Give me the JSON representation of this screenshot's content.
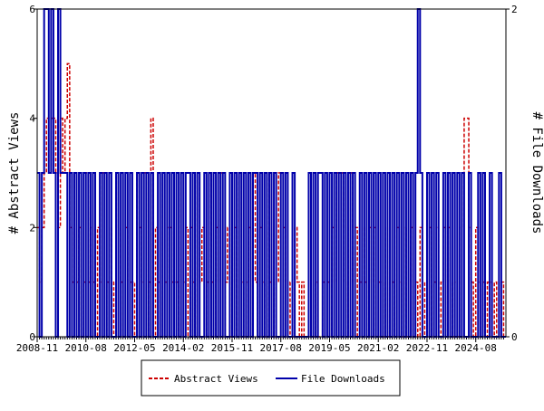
{
  "chart_data": {
    "type": "step",
    "ylabel": "# Abstract Views",
    "y2label": "# File Downloads",
    "ylim": [
      0,
      6
    ],
    "yticks": [
      0,
      2,
      4,
      6
    ],
    "y2lim": [
      0,
      2
    ],
    "y2ticks": [
      0,
      2
    ],
    "categories": [
      "2008-11",
      "2008-12",
      "2009-01",
      "2009-02",
      "2009-03",
      "2009-04",
      "2009-05",
      "2009-06",
      "2009-07",
      "2009-08",
      "2009-09",
      "2009-10",
      "2009-11",
      "2009-12",
      "2010-01",
      "2010-02",
      "2010-03",
      "2010-04",
      "2010-05",
      "2010-06",
      "2010-07",
      "2010-08",
      "2010-09",
      "2010-10",
      "2010-11",
      "2010-12",
      "2011-01",
      "2011-02",
      "2011-03",
      "2011-04",
      "2011-05",
      "2011-06",
      "2011-07",
      "2011-08",
      "2011-09",
      "2011-10",
      "2011-11",
      "2011-12",
      "2012-01",
      "2012-02",
      "2012-03",
      "2012-04",
      "2012-05",
      "2012-06",
      "2012-07",
      "2012-08",
      "2012-09",
      "2012-10",
      "2012-11",
      "2012-12",
      "2013-01",
      "2013-02",
      "2013-03",
      "2013-04",
      "2013-05",
      "2013-06",
      "2013-07",
      "2013-08",
      "2013-09",
      "2013-10",
      "2013-11",
      "2013-12",
      "2014-01",
      "2014-02",
      "2014-03",
      "2014-04",
      "2014-05",
      "2014-06",
      "2014-07",
      "2014-08",
      "2014-09",
      "2014-10",
      "2014-11",
      "2014-12",
      "2015-01",
      "2015-02",
      "2015-03",
      "2015-04",
      "2015-05",
      "2015-06",
      "2015-07",
      "2015-08",
      "2015-09",
      "2015-10",
      "2015-11",
      "2015-12",
      "2016-01",
      "2016-02",
      "2016-03",
      "2016-04",
      "2016-05",
      "2016-06",
      "2016-07",
      "2016-08",
      "2016-09",
      "2016-10",
      "2016-11",
      "2016-12",
      "2017-01",
      "2017-02",
      "2017-03",
      "2017-04",
      "2017-05",
      "2017-06",
      "2017-07",
      "2017-08",
      "2017-09",
      "2017-10",
      "2017-11",
      "2017-12",
      "2018-01",
      "2018-02",
      "2018-03",
      "2018-04",
      "2018-05",
      "2018-06",
      "2018-07",
      "2018-08",
      "2018-09",
      "2018-10",
      "2018-11",
      "2018-12",
      "2019-01",
      "2019-02",
      "2019-03",
      "2019-04",
      "2019-05",
      "2019-06",
      "2019-07",
      "2019-08",
      "2019-09",
      "2019-10",
      "2019-11",
      "2019-12",
      "2020-01",
      "2020-02",
      "2020-03",
      "2020-04",
      "2020-05",
      "2020-06",
      "2020-07",
      "2020-08",
      "2020-09",
      "2020-10",
      "2020-11",
      "2020-12",
      "2021-01",
      "2021-02",
      "2021-03",
      "2021-04",
      "2021-05",
      "2021-06",
      "2021-07",
      "2021-08",
      "2021-09",
      "2021-10",
      "2021-11",
      "2021-12",
      "2022-01",
      "2022-02",
      "2022-03",
      "2022-04",
      "2022-05",
      "2022-06",
      "2022-07",
      "2022-08",
      "2022-09",
      "2022-10",
      "2022-11",
      "2022-12",
      "2023-01",
      "2023-02",
      "2023-03",
      "2023-04",
      "2023-05",
      "2023-06",
      "2023-07",
      "2023-08",
      "2023-09",
      "2023-10",
      "2023-11",
      "2023-12",
      "2024-01",
      "2024-02",
      "2024-03",
      "2024-04",
      "2024-05",
      "2024-06",
      "2024-07",
      "2024-08",
      "2024-09",
      "2024-10",
      "2024-11",
      "2024-12",
      "2025-01",
      "2025-02",
      "2025-03",
      "2025-04",
      "2025-05",
      "2025-06",
      "2025-07",
      "2025-08"
    ],
    "xticks": [
      "2008-11",
      "2010-08",
      "2012-05",
      "2014-02",
      "2015-11",
      "2017-08",
      "2019-05",
      "2021-02",
      "2022-11",
      "2024-08"
    ],
    "series": [
      {
        "name": "Abstract Views",
        "color": "#cc0000",
        "dash": true,
        "values": [
          2,
          1,
          2,
          3,
          4,
          3,
          4,
          4,
          3,
          2,
          4,
          3,
          4,
          5,
          2,
          1,
          3,
          1,
          2,
          0,
          1,
          3,
          1,
          2,
          1,
          0,
          2,
          1,
          3,
          0,
          1,
          2,
          0,
          1,
          3,
          2,
          1,
          0,
          2,
          1,
          1,
          1,
          0,
          3,
          2,
          1,
          3,
          0,
          1,
          4,
          0,
          2,
          1,
          0,
          3,
          1,
          2,
          2,
          1,
          1,
          1,
          0,
          3,
          1,
          2,
          0,
          2,
          1,
          0,
          3,
          1,
          2,
          0,
          1,
          3,
          1,
          0,
          2,
          1,
          3,
          0,
          1,
          2,
          0,
          1,
          2,
          0,
          3,
          1,
          0,
          1,
          2,
          0,
          3,
          1,
          0,
          2,
          1,
          0,
          3,
          1,
          2,
          0,
          1,
          3,
          0,
          2,
          1,
          0,
          1,
          0,
          2,
          1,
          0,
          1,
          0,
          0,
          0,
          0,
          0,
          1,
          0,
          0,
          1,
          1,
          1,
          0,
          2,
          1,
          3,
          2,
          3,
          1,
          0,
          2,
          3,
          1,
          2,
          0,
          1,
          2,
          1,
          0,
          2,
          1,
          2,
          0,
          1,
          1,
          0,
          2,
          0,
          1,
          1,
          0,
          2,
          1,
          0,
          2,
          0,
          1,
          2,
          0,
          1,
          0,
          2,
          1,
          0,
          1,
          2,
          0,
          1,
          2,
          0,
          1,
          2,
          0,
          2,
          1,
          0,
          1,
          0,
          2,
          3,
          4,
          4,
          2,
          1,
          0,
          2,
          1,
          0,
          1,
          0,
          1,
          1,
          0,
          1,
          0,
          1,
          1,
          0
        ]
      },
      {
        "name": "File Downloads",
        "color": "#0000aa",
        "axis": "y2",
        "values": [
          1,
          0,
          1,
          2,
          2,
          1,
          2,
          1,
          0,
          2,
          1,
          1,
          1,
          0,
          1,
          0,
          1,
          0,
          1,
          0,
          1,
          0,
          1,
          0,
          1,
          0,
          0,
          1,
          0,
          1,
          0,
          1,
          0,
          0,
          1,
          0,
          1,
          0,
          1,
          0,
          1,
          0,
          0,
          1,
          0,
          1,
          0,
          1,
          0,
          1,
          0,
          0,
          1,
          0,
          1,
          0,
          1,
          0,
          1,
          0,
          1,
          0,
          1,
          0,
          1,
          1,
          0,
          1,
          0,
          1,
          0,
          0,
          1,
          0,
          1,
          0,
          1,
          0,
          1,
          0,
          1,
          0,
          0,
          1,
          0,
          1,
          0,
          1,
          0,
          1,
          0,
          1,
          0,
          1,
          1,
          0,
          1,
          0,
          1,
          0,
          1,
          0,
          1,
          0,
          0,
          1,
          0,
          1,
          0,
          0,
          1,
          0,
          0,
          0,
          0,
          0,
          0,
          1,
          0,
          1,
          0,
          1,
          1,
          0,
          1,
          0,
          1,
          0,
          1,
          0,
          1,
          0,
          1,
          0,
          1,
          0,
          1,
          0,
          0,
          1,
          0,
          1,
          0,
          1,
          0,
          1,
          0,
          1,
          0,
          1,
          0,
          1,
          0,
          1,
          0,
          1,
          0,
          1,
          0,
          1,
          0,
          1,
          0,
          1,
          2,
          1,
          0,
          0,
          1,
          0,
          1,
          0,
          1,
          0,
          0,
          1,
          0,
          1,
          0,
          1,
          0,
          1,
          0,
          1,
          0,
          0,
          1,
          0,
          0,
          0,
          1,
          0,
          1,
          0,
          0,
          1,
          0,
          0,
          0,
          1,
          0,
          0
        ]
      }
    ]
  }
}
